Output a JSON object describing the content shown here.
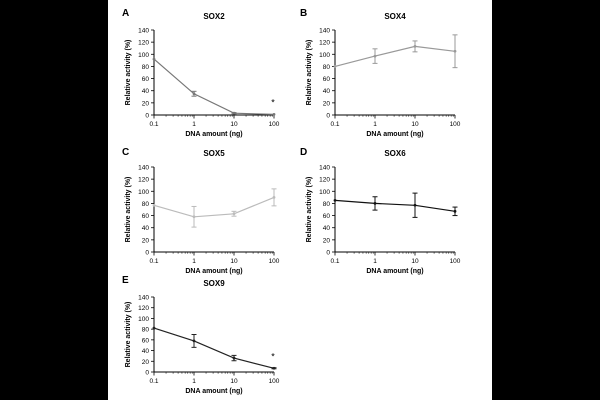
{
  "chart_data": [
    {
      "type": "line",
      "panel": "A",
      "title": "SOX2",
      "xlabel": "DNA amount (ng)",
      "ylabel": "Relative activity (%)",
      "xscale": "log",
      "x": [
        0.1,
        1,
        10,
        100
      ],
      "xticklabels": [
        "0.1",
        "1",
        "10",
        "100"
      ],
      "ylim": [
        0,
        140
      ],
      "yticks": [
        0,
        20,
        40,
        60,
        80,
        100,
        120,
        140
      ],
      "values": [
        92,
        35,
        3,
        1
      ],
      "errors": [
        0,
        4,
        1,
        0
      ],
      "color": "#777777",
      "annotation": "*"
    },
    {
      "type": "line",
      "panel": "B",
      "title": "SOX4",
      "xlabel": "DNA amount (ng)",
      "ylabel": "Relative activity (%)",
      "xscale": "log",
      "x": [
        0.1,
        1,
        10,
        100
      ],
      "xticklabels": [
        "0.1",
        "1",
        "10",
        "100"
      ],
      "ylim": [
        0,
        140
      ],
      "yticks": [
        0,
        20,
        40,
        60,
        80,
        100,
        120,
        140
      ],
      "values": [
        80,
        97,
        113,
        105
      ],
      "errors": [
        0,
        12,
        9,
        27
      ],
      "color": "#999999",
      "annotation": ""
    },
    {
      "type": "line",
      "panel": "C",
      "title": "SOX5",
      "xlabel": "DNA amount (ng)",
      "ylabel": "Relative activity (%)",
      "xscale": "log",
      "x": [
        0.1,
        1,
        10,
        100
      ],
      "xticklabels": [
        "0.1",
        "1",
        "10",
        "100"
      ],
      "ylim": [
        0,
        140
      ],
      "yticks": [
        0,
        20,
        40,
        60,
        80,
        100,
        120,
        140
      ],
      "values": [
        77,
        58,
        63,
        90
      ],
      "errors": [
        0,
        17,
        4,
        14
      ],
      "color": "#bbbbbb",
      "annotation": ""
    },
    {
      "type": "line",
      "panel": "D",
      "title": "SOX6",
      "xlabel": "DNA amount (ng)",
      "ylabel": "Relative activity (%)",
      "xscale": "log",
      "x": [
        0.1,
        1,
        10,
        100
      ],
      "xticklabels": [
        "0.1",
        "1",
        "10",
        "100"
      ],
      "ylim": [
        0,
        140
      ],
      "yticks": [
        0,
        20,
        40,
        60,
        80,
        100,
        120,
        140
      ],
      "values": [
        85,
        80,
        77,
        67
      ],
      "errors": [
        0,
        11,
        20,
        7
      ],
      "color": "#111111",
      "annotation": ""
    },
    {
      "type": "line",
      "panel": "E",
      "title": "SOX9",
      "xlabel": "DNA amount (ng)",
      "ylabel": "Relative activity (%)",
      "xscale": "log",
      "x": [
        0.1,
        1,
        10,
        100
      ],
      "xticklabels": [
        "0.1",
        "1",
        "10",
        "100"
      ],
      "ylim": [
        0,
        140
      ],
      "yticks": [
        0,
        20,
        40,
        60,
        80,
        100,
        120,
        140
      ],
      "values": [
        82,
        58,
        26,
        7
      ],
      "errors": [
        0,
        12,
        5,
        1
      ],
      "color": "#222222",
      "annotation": "*"
    }
  ]
}
